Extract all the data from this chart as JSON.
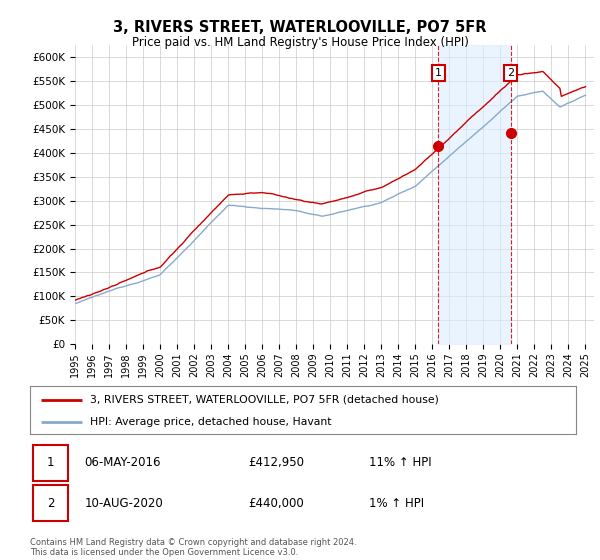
{
  "title": "3, RIVERS STREET, WATERLOOVILLE, PO7 5FR",
  "subtitle": "Price paid vs. HM Land Registry's House Price Index (HPI)",
  "ylabel_ticks": [
    "£0",
    "£50K",
    "£100K",
    "£150K",
    "£200K",
    "£250K",
    "£300K",
    "£350K",
    "£400K",
    "£450K",
    "£500K",
    "£550K",
    "£600K"
  ],
  "ytick_values": [
    0,
    50000,
    100000,
    150000,
    200000,
    250000,
    300000,
    350000,
    400000,
    450000,
    500000,
    550000,
    600000
  ],
  "ylim": [
    0,
    625000
  ],
  "xlim_start": 1995.0,
  "xlim_end": 2025.5,
  "xtick_labels": [
    "1995",
    "1996",
    "1997",
    "1998",
    "1999",
    "2000",
    "2001",
    "2002",
    "2003",
    "2004",
    "2005",
    "2006",
    "2007",
    "2008",
    "2009",
    "2010",
    "2011",
    "2012",
    "2013",
    "2014",
    "2015",
    "2016",
    "2017",
    "2018",
    "2019",
    "2020",
    "2021",
    "2022",
    "2023",
    "2024",
    "2025"
  ],
  "sale1_x": 2016.35,
  "sale1_y": 412950,
  "sale2_x": 2020.6,
  "sale2_y": 440000,
  "sale1_label": "1",
  "sale2_label": "2",
  "sale1_date": "06-MAY-2016",
  "sale1_price": "£412,950",
  "sale1_hpi": "11% ↑ HPI",
  "sale2_date": "10-AUG-2020",
  "sale2_price": "£440,000",
  "sale2_hpi": "1% ↑ HPI",
  "legend1_label": "3, RIVERS STREET, WATERLOOVILLE, PO7 5FR (detached house)",
  "legend2_label": "HPI: Average price, detached house, Havant",
  "line_color_red": "#cc0000",
  "line_color_blue": "#88aacc",
  "fill_color": "#ddeeff",
  "grid_color": "#cccccc",
  "background_color": "#ffffff",
  "footnote": "Contains HM Land Registry data © Crown copyright and database right 2024.\nThis data is licensed under the Open Government Licence v3.0."
}
